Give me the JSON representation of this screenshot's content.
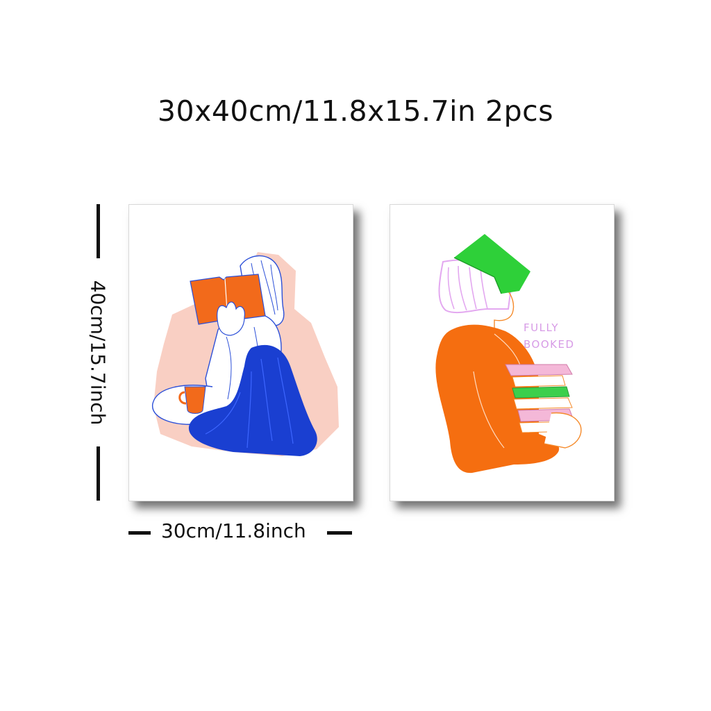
{
  "headline": "30x40cm/11.8x15.7in 2pcs",
  "dimensions": {
    "height_label": "40cm/15.7inch",
    "width_label": "30cm/11.8inch"
  },
  "posters": [
    {
      "subject": "woman-reading-with-blanket",
      "colors": {
        "book": "#f26a1b",
        "blanket": "#1a3fd1",
        "backdrop": "#f8c7b8",
        "mug": "#f26a1b",
        "line": "#2b4fd8"
      }
    },
    {
      "subject": "woman-carrying-books",
      "text_line1": "FULLY",
      "text_line2": "BOOKED",
      "colors": {
        "sweater": "#f56e10",
        "book_on_head": "#2ed039",
        "hair": "#e3a8f0",
        "lettering": "#d79be6",
        "book_pink": "#f4b8d8",
        "book_green": "#3ccf4c",
        "line": "#f58a2a"
      }
    }
  ]
}
